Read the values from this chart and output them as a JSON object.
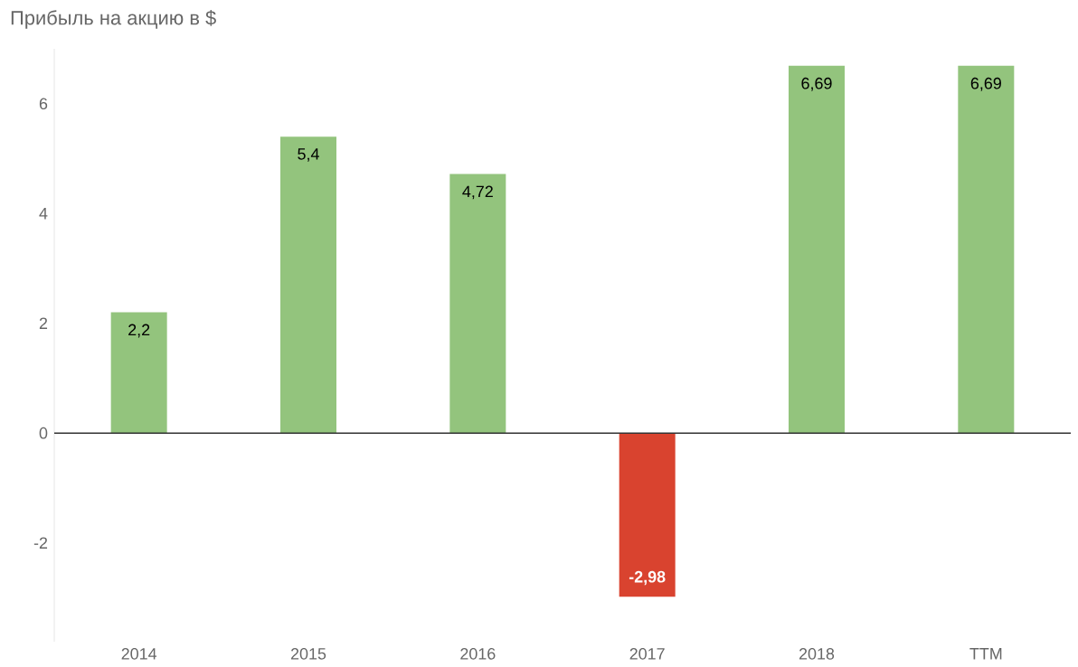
{
  "chart_data": {
    "type": "bar",
    "title": "Прибыль на акцию в $",
    "categories": [
      "2014",
      "2015",
      "2016",
      "2017",
      "2018",
      "TTM"
    ],
    "values": [
      2.2,
      5.4,
      4.72,
      -2.98,
      6.69,
      6.69
    ],
    "value_labels": [
      "2,2",
      "5,4",
      "4,72",
      "-2,98",
      "6,69",
      "6,69"
    ],
    "colors": [
      "#93c47d",
      "#93c47d",
      "#93c47d",
      "#d9432f",
      "#93c47d",
      "#93c47d"
    ],
    "ylim": [
      -3.8,
      7.0
    ],
    "yticks": [
      -2,
      0,
      2,
      4,
      6
    ],
    "ref_lines": [
      {
        "axis": "y",
        "value": 0,
        "color": "#333333"
      }
    ],
    "grid": false
  }
}
